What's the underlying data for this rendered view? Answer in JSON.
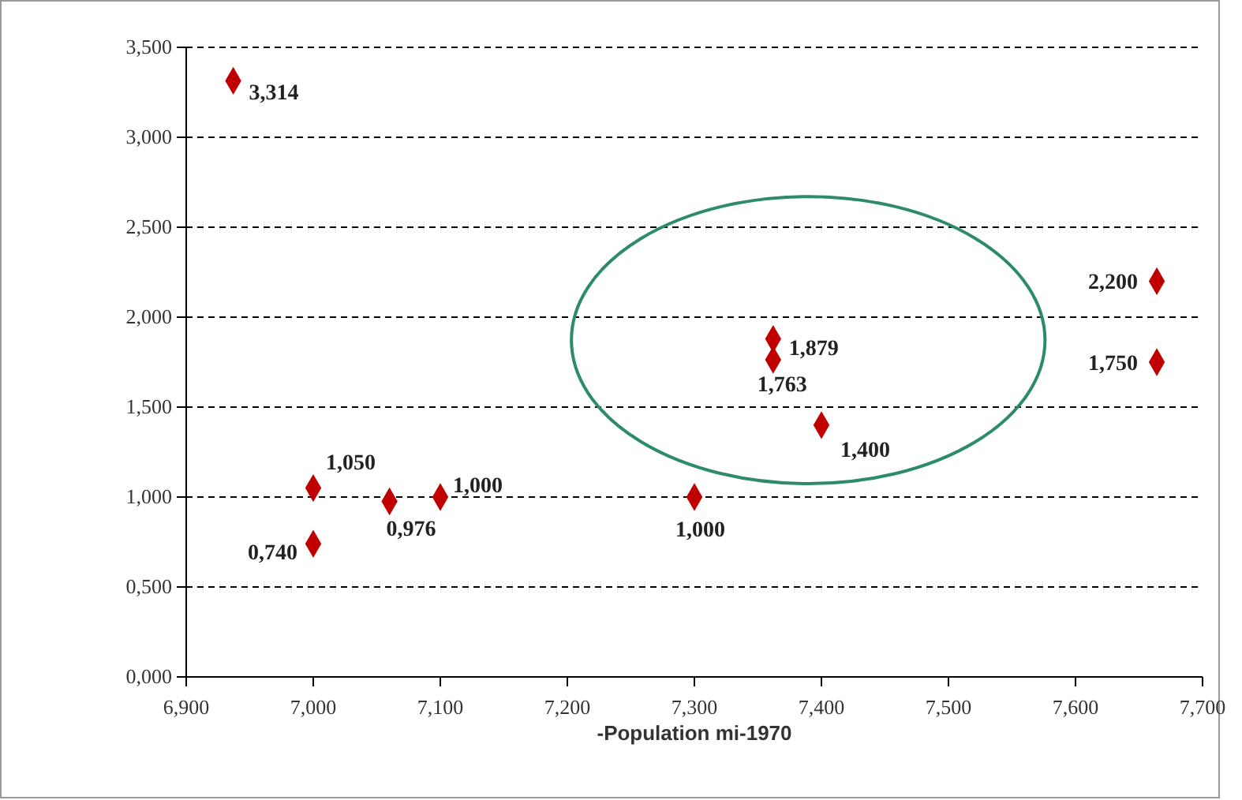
{
  "chart_data": {
    "type": "scatter",
    "xlabel": "-Population mi-1970",
    "x": [
      6.937,
      7.0,
      7.0,
      7.06,
      7.1,
      7.3,
      7.362,
      7.362,
      7.4,
      7.664,
      7.664
    ],
    "values": [
      3.314,
      1.05,
      0.74,
      0.976,
      1.0,
      1.0,
      1.879,
      1.763,
      1.4,
      2.2,
      1.75
    ],
    "value_labels": [
      "3,314",
      "1,050",
      "0,740",
      "0,976",
      "1,000",
      "1,000",
      "1,879",
      "1,763",
      "1,400",
      "2,200",
      "1,750"
    ],
    "color": "#c00000",
    "marker": "diamond",
    "grid": "y",
    "xlim": [
      6.9,
      7.7
    ],
    "xticks": [
      {
        "value": 6.9,
        "label": "6,900"
      },
      {
        "value": 7.0,
        "label": "7,000"
      },
      {
        "value": 7.1,
        "label": "7,100"
      },
      {
        "value": 7.2,
        "label": "7,200"
      },
      {
        "value": 7.3,
        "label": "7,300"
      },
      {
        "value": 7.4,
        "label": "7,400"
      },
      {
        "value": 7.5,
        "label": "7,500"
      },
      {
        "value": 7.6,
        "label": "7,600"
      },
      {
        "value": 7.7,
        "label": "7,700"
      }
    ],
    "ylim": [
      0,
      3.5
    ],
    "yticks": [
      {
        "value": 0,
        "label": "0,000"
      },
      {
        "value": 0.5,
        "label": "0,500"
      },
      {
        "value": 1,
        "label": "1,000"
      },
      {
        "value": 1.5,
        "label": "1,500"
      },
      {
        "value": 2,
        "label": "2,000"
      },
      {
        "value": 2.5,
        "label": "2,500"
      },
      {
        "value": 3,
        "label": "3,000"
      },
      {
        "value": 3.5,
        "label": "3,500"
      }
    ]
  }
}
